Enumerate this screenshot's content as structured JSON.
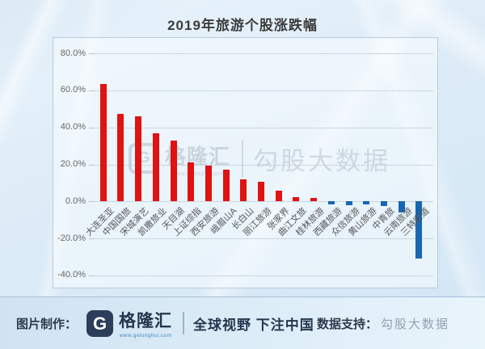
{
  "chart_data": {
    "type": "bar",
    "title": "2019年旅游个股涨跌幅",
    "categories": [
      "大连圣亚",
      "中国国旅",
      "宋城演艺",
      "凯撒旅业",
      "天目湖",
      "上证综指",
      "西安旅游",
      "峨眉山A",
      "长白山",
      "丽江旅游",
      "张家界",
      "曲江文旅",
      "桂林旅游",
      "西藏旅游",
      "众信旅游",
      "黄山旅游",
      "中青旅",
      "云南旅游",
      "三特索道"
    ],
    "values": [
      63.5,
      47.5,
      46,
      37,
      33,
      21,
      19.5,
      17,
      12,
      10.5,
      6,
      2.5,
      2,
      -1.5,
      -2,
      -1.5,
      -2.5,
      -6,
      -31
    ],
    "unit": "%",
    "ylim": [
      -40,
      80
    ],
    "ytick_values": [
      80,
      60,
      40,
      20,
      0,
      -20,
      -40
    ],
    "ytick_labels": [
      "80.0%",
      "60.0%",
      "40.0%",
      "20.0%",
      "0.0%",
      "-20.0%",
      "-40.0%"
    ],
    "grid": true,
    "legend": "none",
    "positive_color": "#e01212",
    "negative_color": "#1767b1"
  },
  "icons": {
    "gelonghui_logo_glyph": "G"
  },
  "watermark": {
    "brand": "格隆汇",
    "url": "www.gelonghui.com",
    "right": "勾股大数据"
  },
  "footer": {
    "made_by_label": "图片制作：",
    "brand": "格隆汇",
    "brand_url": "www.gelonghui.com",
    "slogan": "全球视野 下注中国",
    "data_support_label": "数据支持：",
    "data_support_value": "勾股大数据"
  }
}
